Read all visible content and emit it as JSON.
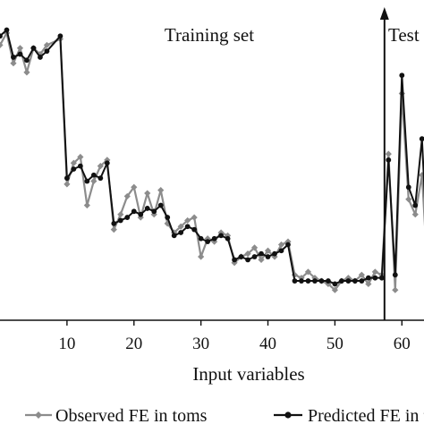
{
  "chart_data": {
    "type": "line",
    "title": "",
    "xlabel": "Input variables",
    "ylabel": "",
    "xlim": [
      0,
      63.3
    ],
    "ylim": [
      0,
      1
    ],
    "x_ticks": [
      10,
      20,
      30,
      40,
      50,
      60
    ],
    "regions": [
      {
        "label": "Training set",
        "x_start": 0,
        "x_end": 57.4
      },
      {
        "label": "Test",
        "x_start": 57.4,
        "x_end": 63.3
      }
    ],
    "divider_x": 57.4,
    "grid": false,
    "legend_position": "bottom",
    "series": [
      {
        "name": "Observed FE in toms",
        "color": "#8c8c8c",
        "marker": "diamond",
        "points": [
          [
            0.0,
            0.91
          ],
          [
            1.0,
            0.95
          ],
          [
            2.0,
            0.85
          ],
          [
            3.0,
            0.9
          ],
          [
            4.0,
            0.82
          ],
          [
            5.0,
            0.9
          ],
          [
            6.0,
            0.88
          ],
          [
            7.0,
            0.91
          ],
          [
            9.0,
            0.93
          ],
          [
            10.0,
            0.45
          ],
          [
            11.0,
            0.52
          ],
          [
            12.0,
            0.54
          ],
          [
            13.0,
            0.38
          ],
          [
            14.0,
            0.46
          ],
          [
            15.0,
            0.51
          ],
          [
            16.0,
            0.53
          ],
          [
            17.0,
            0.3
          ],
          [
            18.0,
            0.35
          ],
          [
            19.0,
            0.41
          ],
          [
            20.0,
            0.44
          ],
          [
            21.0,
            0.34
          ],
          [
            22.0,
            0.42
          ],
          [
            23.0,
            0.35
          ],
          [
            24.0,
            0.43
          ],
          [
            25.0,
            0.32
          ],
          [
            26.0,
            0.29
          ],
          [
            27.0,
            0.31
          ],
          [
            28.0,
            0.33
          ],
          [
            29.0,
            0.34
          ],
          [
            30.0,
            0.21
          ],
          [
            31.0,
            0.27
          ],
          [
            32.0,
            0.26
          ],
          [
            33.0,
            0.29
          ],
          [
            34.0,
            0.28
          ],
          [
            35.0,
            0.19
          ],
          [
            36.0,
            0.21
          ],
          [
            37.0,
            0.22
          ],
          [
            38.0,
            0.24
          ],
          [
            39.0,
            0.2
          ],
          [
            40.0,
            0.23
          ],
          [
            41.0,
            0.21
          ],
          [
            42.0,
            0.25
          ],
          [
            43.0,
            0.26
          ],
          [
            44.0,
            0.15
          ],
          [
            45.0,
            0.14
          ],
          [
            46.0,
            0.16
          ],
          [
            47.0,
            0.14
          ],
          [
            48.0,
            0.13
          ],
          [
            49.0,
            0.12
          ],
          [
            50.0,
            0.1
          ],
          [
            51.0,
            0.13
          ],
          [
            52.0,
            0.14
          ],
          [
            53.0,
            0.13
          ],
          [
            54.0,
            0.15
          ],
          [
            55.0,
            0.12
          ],
          [
            56.0,
            0.16
          ],
          [
            57.0,
            0.15
          ],
          [
            58.0,
            0.55
          ],
          [
            59.0,
            0.1
          ],
          [
            60.0,
            0.75
          ],
          [
            61.0,
            0.4
          ],
          [
            62.0,
            0.35
          ],
          [
            63.0,
            0.48
          ],
          [
            64.0,
            0.1
          ]
        ]
      },
      {
        "name": "Predicted FE in toms",
        "color": "#111111",
        "marker": "circle",
        "points": [
          [
            0.0,
            0.94
          ],
          [
            1.0,
            0.96
          ],
          [
            2.0,
            0.87
          ],
          [
            3.0,
            0.88
          ],
          [
            4.0,
            0.86
          ],
          [
            5.0,
            0.9
          ],
          [
            6.0,
            0.87
          ],
          [
            7.0,
            0.89
          ],
          [
            9.0,
            0.94
          ],
          [
            10.0,
            0.47
          ],
          [
            11.0,
            0.5
          ],
          [
            12.0,
            0.51
          ],
          [
            13.0,
            0.46
          ],
          [
            14.0,
            0.48
          ],
          [
            15.0,
            0.47
          ],
          [
            16.0,
            0.52
          ],
          [
            17.0,
            0.32
          ],
          [
            18.0,
            0.33
          ],
          [
            19.0,
            0.34
          ],
          [
            20.0,
            0.36
          ],
          [
            21.0,
            0.35
          ],
          [
            22.0,
            0.37
          ],
          [
            23.0,
            0.36
          ],
          [
            24.0,
            0.38
          ],
          [
            25.0,
            0.34
          ],
          [
            26.0,
            0.28
          ],
          [
            27.0,
            0.29
          ],
          [
            28.0,
            0.31
          ],
          [
            29.0,
            0.3
          ],
          [
            30.0,
            0.27
          ],
          [
            31.0,
            0.26
          ],
          [
            32.0,
            0.27
          ],
          [
            33.0,
            0.28
          ],
          [
            34.0,
            0.27
          ],
          [
            35.0,
            0.2
          ],
          [
            36.0,
            0.21
          ],
          [
            37.0,
            0.2
          ],
          [
            38.0,
            0.21
          ],
          [
            39.0,
            0.22
          ],
          [
            40.0,
            0.21
          ],
          [
            41.0,
            0.22
          ],
          [
            42.0,
            0.23
          ],
          [
            43.0,
            0.25
          ],
          [
            44.0,
            0.13
          ],
          [
            45.0,
            0.13
          ],
          [
            46.0,
            0.13
          ],
          [
            47.0,
            0.13
          ],
          [
            48.0,
            0.13
          ],
          [
            49.0,
            0.13
          ],
          [
            50.0,
            0.12
          ],
          [
            51.0,
            0.13
          ],
          [
            52.0,
            0.13
          ],
          [
            53.0,
            0.13
          ],
          [
            54.0,
            0.13
          ],
          [
            55.0,
            0.14
          ],
          [
            56.0,
            0.14
          ],
          [
            57.0,
            0.14
          ],
          [
            58.0,
            0.53
          ],
          [
            59.0,
            0.15
          ],
          [
            60.0,
            0.81
          ],
          [
            61.0,
            0.44
          ],
          [
            62.0,
            0.38
          ],
          [
            63.0,
            0.6
          ],
          [
            64.0,
            0.14
          ]
        ]
      }
    ]
  }
}
